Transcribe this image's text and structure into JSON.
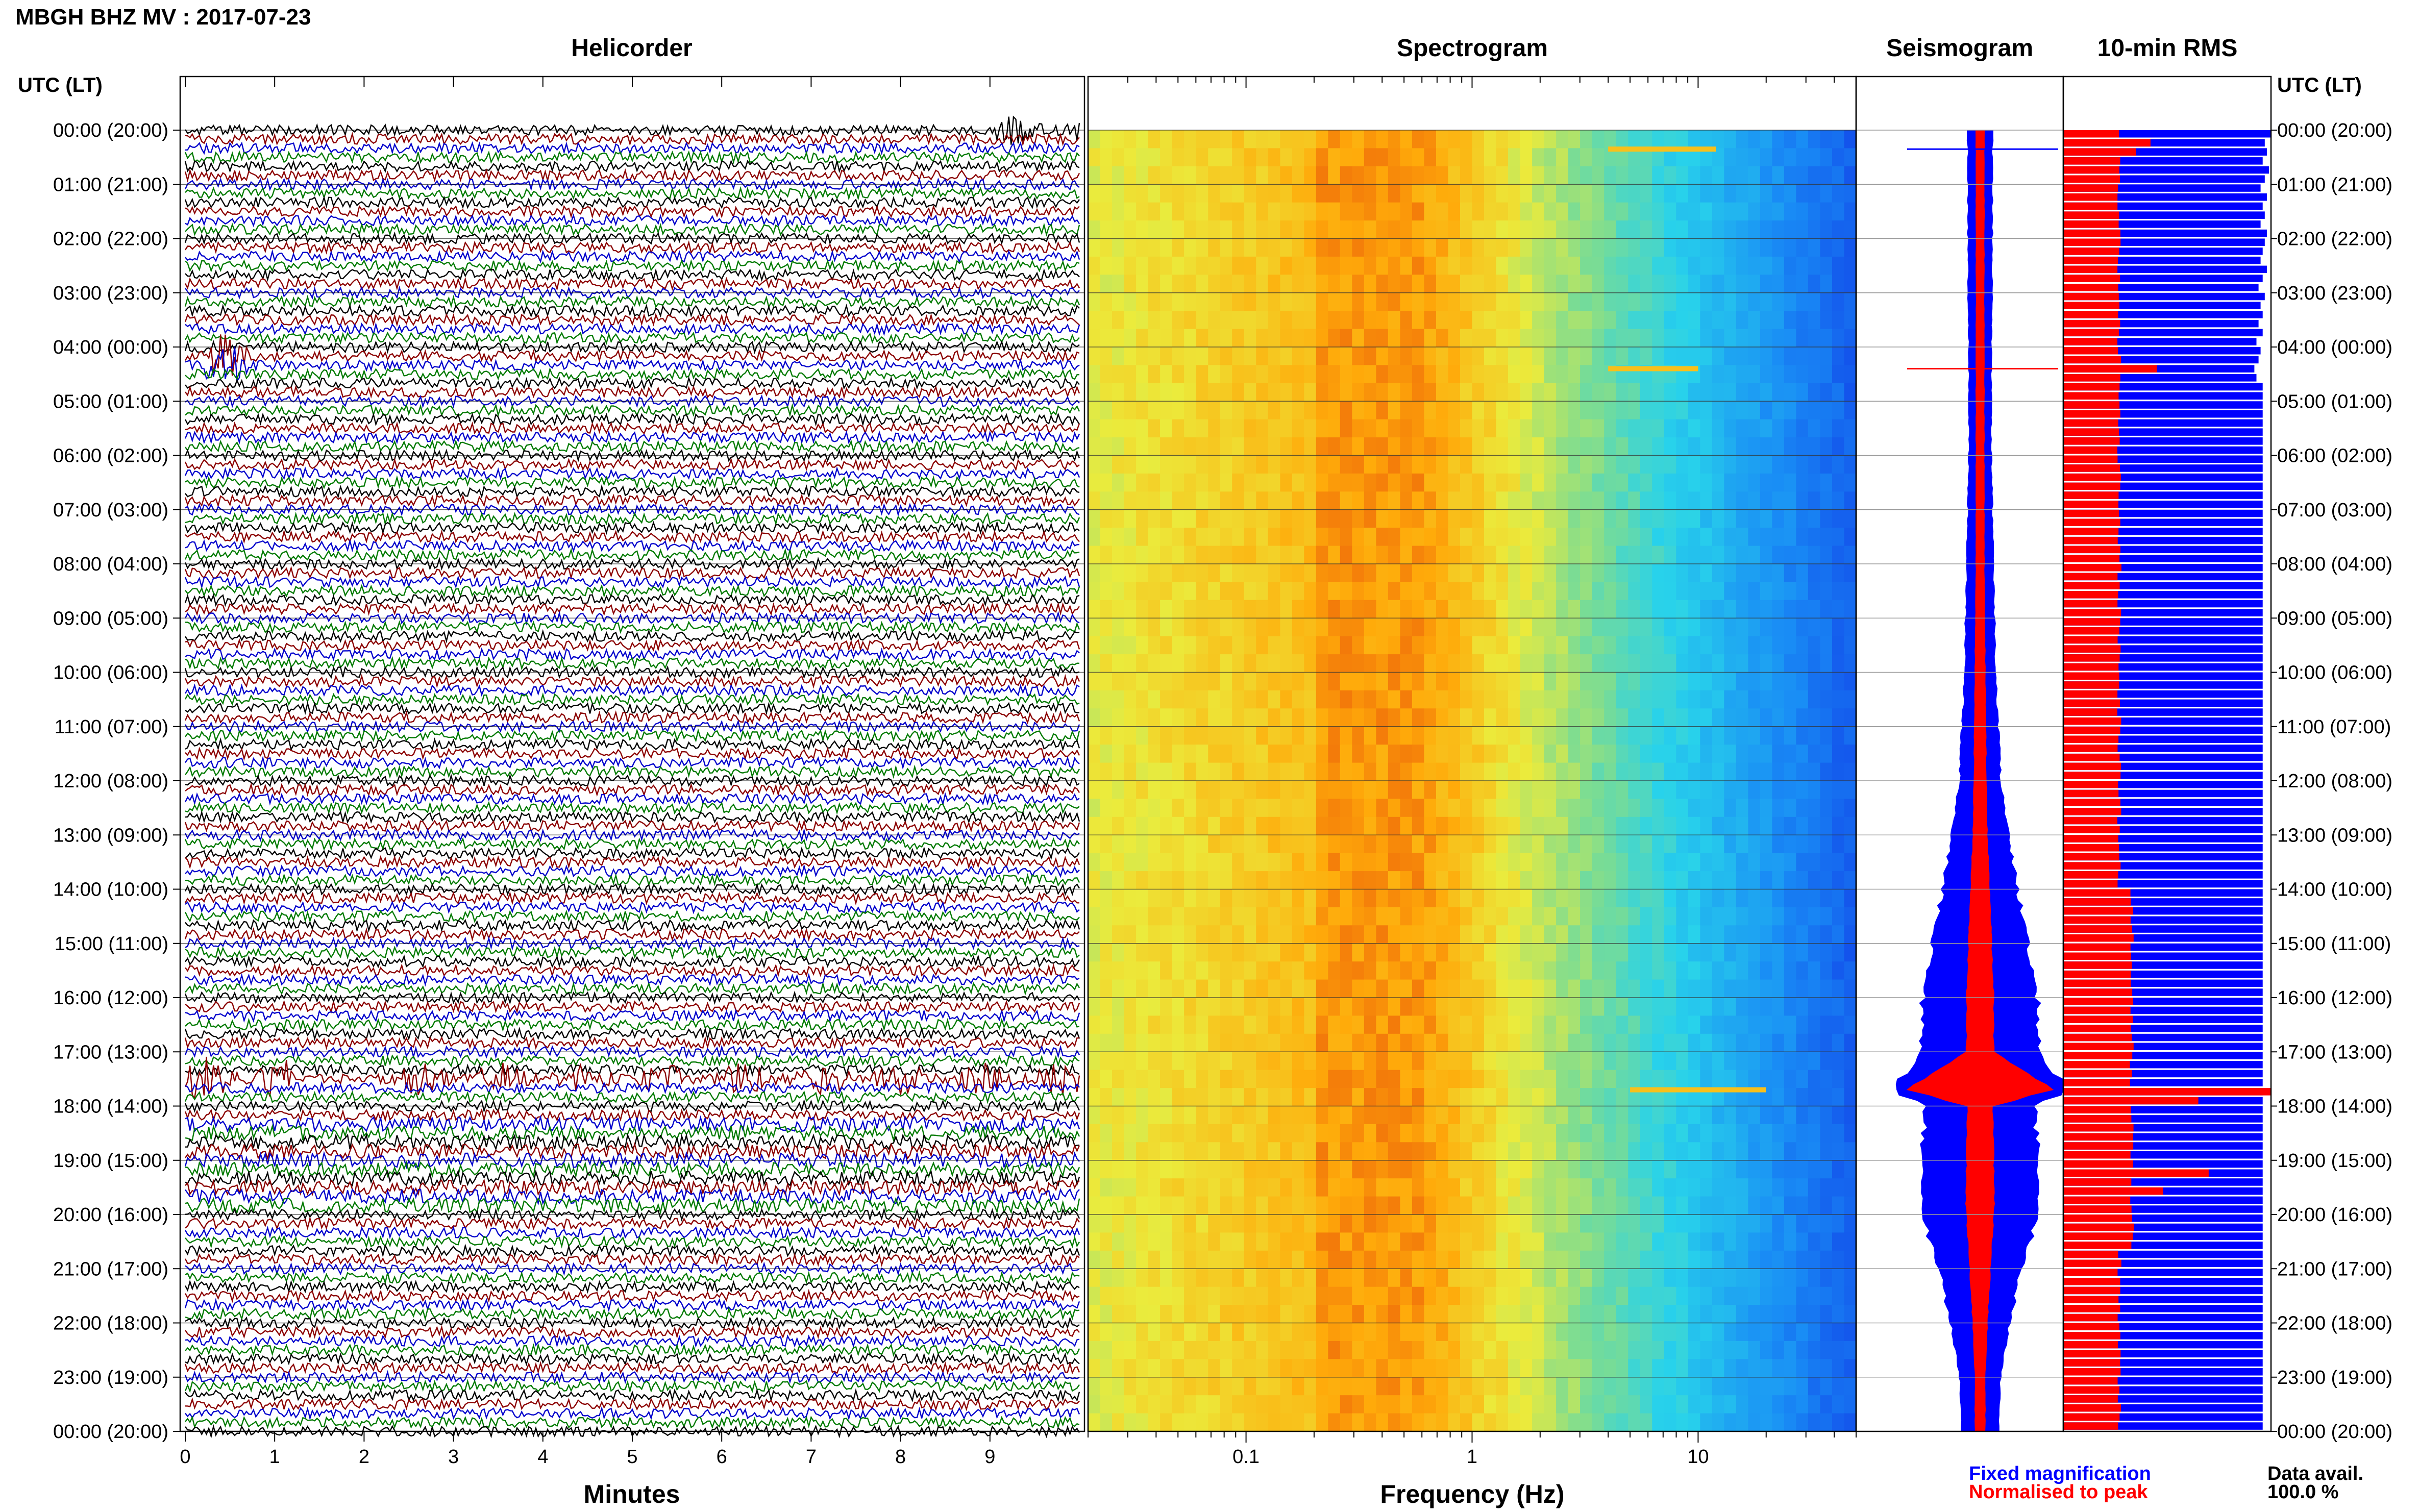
{
  "header": {
    "title": "MBGH BHZ MV : 2017-07-23"
  },
  "axis_labels": {
    "left": "UTC (LT)",
    "right": "UTC (LT)"
  },
  "panels": {
    "helicorder": {
      "title": "Helicorder",
      "xlabel": "Minutes"
    },
    "spectrogram": {
      "title": "Spectrogram",
      "xlabel": "Frequency (Hz)"
    },
    "seismogram": {
      "title": "Seismogram"
    },
    "rms": {
      "title": "10-min RMS"
    }
  },
  "legend": {
    "fixed": "Fixed magnification",
    "normalised": "Normalised to peak",
    "data_avail_label": "Data avail.",
    "data_avail_value": "100.0 %"
  },
  "colors": {
    "trace": [
      "#000000",
      "#8b0000",
      "#0000cc",
      "#007a00"
    ],
    "fixed": "#0000ff",
    "normalised": "#ff0000",
    "spectrogram_low": "#0a3cf0",
    "spectrogram_high": "#ff9b00"
  },
  "chart_data": [
    {
      "type": "line",
      "name": "helicorder",
      "title": "Helicorder",
      "xlabel": "Minutes",
      "ylabel": "UTC (LT)",
      "xlim": [
        0,
        10
      ],
      "xticks": [
        0,
        1,
        2,
        3,
        4,
        5,
        6,
        7,
        8,
        9
      ],
      "yticks": [
        "00:00 (20:00)",
        "01:00 (21:00)",
        "02:00 (22:00)",
        "03:00 (23:00)",
        "04:00 (00:00)",
        "05:00 (01:00)",
        "06:00 (02:00)",
        "07:00 (03:00)",
        "08:00 (04:00)",
        "09:00 (05:00)",
        "10:00 (06:00)",
        "11:00 (07:00)",
        "12:00 (08:00)",
        "13:00 (09:00)",
        "14:00 (10:00)",
        "15:00 (11:00)",
        "16:00 (12:00)",
        "17:00 (13:00)",
        "18:00 (14:00)",
        "19:00 (15:00)",
        "20:00 (16:00)",
        "21:00 (17:00)",
        "22:00 (18:00)",
        "23:00 (19:00)",
        "00:00 (20:00)"
      ],
      "lines_per_hour": 6,
      "events": [
        {
          "hour": 4.25,
          "minute_start": 0.2,
          "minute_end": 0.7,
          "amplitude": 0.9
        },
        {
          "hour": 17.45,
          "minute_start": 0.0,
          "minute_end": 1.2,
          "amplitude": 1.0
        },
        {
          "hour": 17.45,
          "minute_start": 2.4,
          "minute_end": 10.0,
          "amplitude": 0.6
        },
        {
          "hour": 0.0,
          "minute_start": 9.0,
          "minute_end": 10.0,
          "amplitude": 0.5
        }
      ]
    },
    {
      "type": "heatmap",
      "name": "spectrogram",
      "title": "Spectrogram",
      "xlabel": "Frequency (Hz)",
      "xscale": "log",
      "xlim": [
        0.02,
        50
      ],
      "xticks": [
        0.1,
        1,
        10
      ],
      "xticklabels": [
        "0.1",
        "1",
        "10"
      ],
      "ylim_hours": [
        0,
        24
      ],
      "peak_band_hz": [
        0.2,
        0.6
      ],
      "events": [
        {
          "hour": 17.7,
          "freq_start": 5,
          "freq_end": 20
        },
        {
          "hour": 0.35,
          "freq_start": 4,
          "freq_end": 12
        },
        {
          "hour": 4.4,
          "freq_start": 4,
          "freq_end": 10
        }
      ]
    },
    {
      "type": "area",
      "name": "seismogram",
      "title": "Seismogram",
      "ylim_hours": [
        0,
        24
      ],
      "series": [
        {
          "name": "Fixed magnification",
          "hours": [
            0,
            2,
            4,
            6,
            8,
            10,
            12,
            13,
            14,
            15,
            16,
            17,
            17.7,
            18,
            19,
            19.5,
            20,
            21,
            22,
            23,
            24
          ],
          "halfwidth": [
            0.12,
            0.12,
            0.11,
            0.11,
            0.13,
            0.15,
            0.2,
            0.27,
            0.36,
            0.46,
            0.55,
            0.58,
            0.85,
            0.52,
            0.56,
            0.6,
            0.56,
            0.4,
            0.28,
            0.2,
            0.18
          ]
        },
        {
          "name": "Normalised to peak",
          "hours": [
            0,
            2,
            4,
            6,
            8,
            10,
            12,
            13,
            14,
            15,
            16,
            17,
            17.7,
            18,
            19,
            19.5,
            20,
            21,
            22,
            23,
            24
          ],
          "halfwidth": [
            0.04,
            0.04,
            0.04,
            0.04,
            0.04,
            0.05,
            0.06,
            0.07,
            0.09,
            0.11,
            0.13,
            0.13,
            0.7,
            0.12,
            0.13,
            0.14,
            0.13,
            0.1,
            0.07,
            0.05,
            0.05
          ]
        }
      ]
    },
    {
      "type": "bar",
      "name": "rms",
      "title": "10-min RMS",
      "ylim_hours": [
        0,
        24
      ],
      "series": [
        {
          "name": "Fixed magnification",
          "level": 0.96,
          "early_values": [
            1,
            0.97,
            0.98,
            0.96,
            0.99,
            0.97,
            0.95,
            0.98,
            0.96,
            0.97,
            0.95,
            0.98,
            0.97,
            0.96,
            0.95,
            0.98,
            0.96,
            0.94,
            0.97,
            0.95,
            0.96,
            0.94,
            0.96,
            0.93,
            0.95,
            0.94,
            0.92,
            0.93,
            0.96
          ]
        },
        {
          "name": "Normalised to peak",
          "base": 0.27,
          "hour_14_20_value": 0.33,
          "peak": {
            "hour": 17.6,
            "value": 1.0
          },
          "extra": [
            {
              "hour": 0.2,
              "value": 0.42
            },
            {
              "hour": 0.35,
              "value": 0.35
            },
            {
              "hour": 4.4,
              "value": 0.45
            },
            {
              "hour": 17.8,
              "value": 0.65
            },
            {
              "hour": 19.2,
              "value": 0.7
            },
            {
              "hour": 19.5,
              "value": 0.48
            }
          ]
        }
      ]
    }
  ]
}
